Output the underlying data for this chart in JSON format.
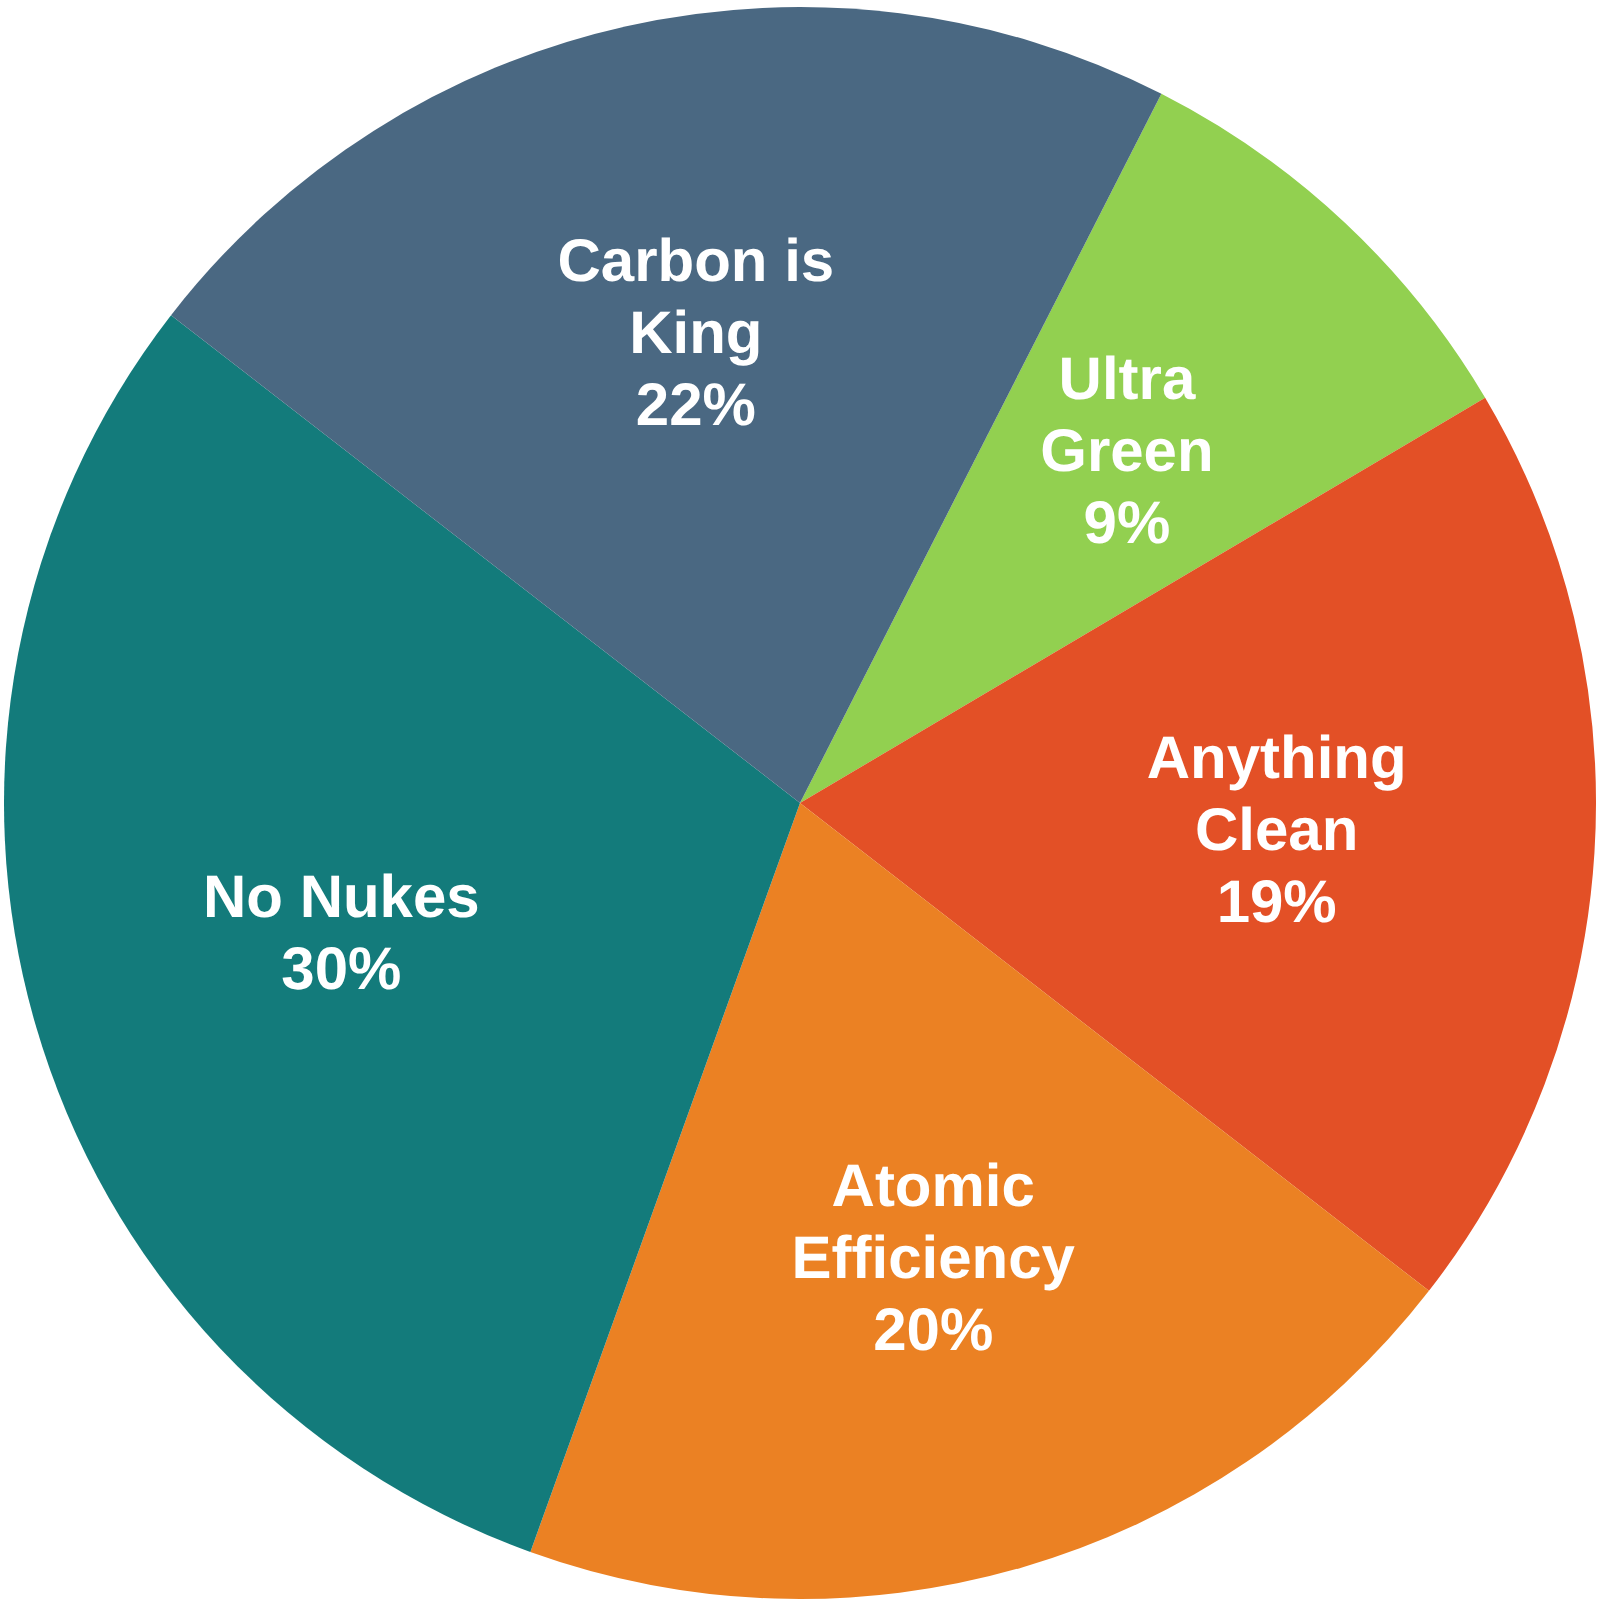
{
  "chart_data": {
    "type": "pie",
    "categories": [
      "Ultra Green",
      "Anything Clean",
      "Atomic Efficiency",
      "No Nukes",
      "Carbon is King"
    ],
    "values": [
      9,
      19,
      20,
      30,
      22
    ],
    "colors": [
      "#92d050",
      "#e35026",
      "#eb8123",
      "#137b7b",
      "#4a6882"
    ],
    "value_labels": [
      "9%",
      "19%",
      "20%",
      "30%",
      "22%"
    ],
    "legend": false
  }
}
